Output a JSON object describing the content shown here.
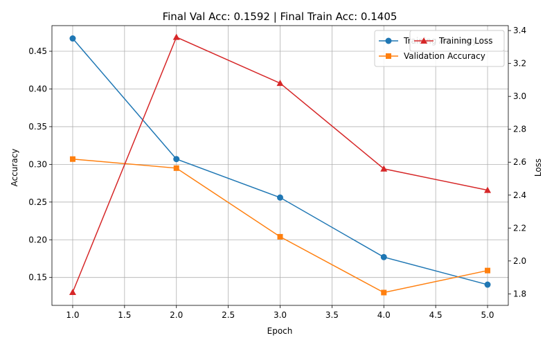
{
  "chart_data": {
    "type": "line",
    "title": "Final Val Acc: 0.1592 | Final Train Acc: 0.1405",
    "xlabel": "Epoch",
    "ylabel_left": "Accuracy",
    "ylabel_right": "Loss",
    "xlim": [
      0.8,
      5.2
    ],
    "ylim_left": [
      0.113,
      0.484
    ],
    "ylim_right": [
      1.73,
      3.43
    ],
    "x_ticks": [
      1.0,
      1.5,
      2.0,
      2.5,
      3.0,
      3.5,
      4.0,
      4.5,
      5.0
    ],
    "x_tick_labels": [
      "1.0",
      "1.5",
      "2.0",
      "2.5",
      "3.0",
      "3.5",
      "4.0",
      "4.5",
      "5.0"
    ],
    "y_left_ticks": [
      0.15,
      0.2,
      0.25,
      0.3,
      0.35,
      0.4,
      0.45
    ],
    "y_left_tick_labels": [
      "0.15",
      "0.20",
      "0.25",
      "0.30",
      "0.35",
      "0.40",
      "0.45"
    ],
    "y_right_ticks": [
      1.8,
      2.0,
      2.2,
      2.4,
      2.6,
      2.8,
      3.0,
      3.2,
      3.4
    ],
    "y_right_tick_labels": [
      "1.8",
      "2.0",
      "2.2",
      "2.4",
      "2.6",
      "2.8",
      "3.0",
      "3.2",
      "3.4"
    ],
    "grid": true,
    "legend_placement": "top-right",
    "x": [
      1,
      2,
      3,
      4,
      5
    ],
    "series": [
      {
        "name": "Training Accuracy",
        "axis": "left",
        "marker": "circle",
        "color": "#1f77b4",
        "values": [
          0.467,
          0.307,
          0.256,
          0.177,
          0.1405
        ]
      },
      {
        "name": "Validation Accuracy",
        "axis": "left",
        "marker": "square",
        "color": "#ff7f0e",
        "values": [
          0.307,
          0.295,
          0.204,
          0.13,
          0.1592
        ]
      },
      {
        "name": "Training Loss",
        "axis": "right",
        "marker": "triangle",
        "color": "#d62728",
        "values": [
          1.81,
          3.36,
          3.08,
          2.56,
          2.43
        ]
      }
    ]
  }
}
